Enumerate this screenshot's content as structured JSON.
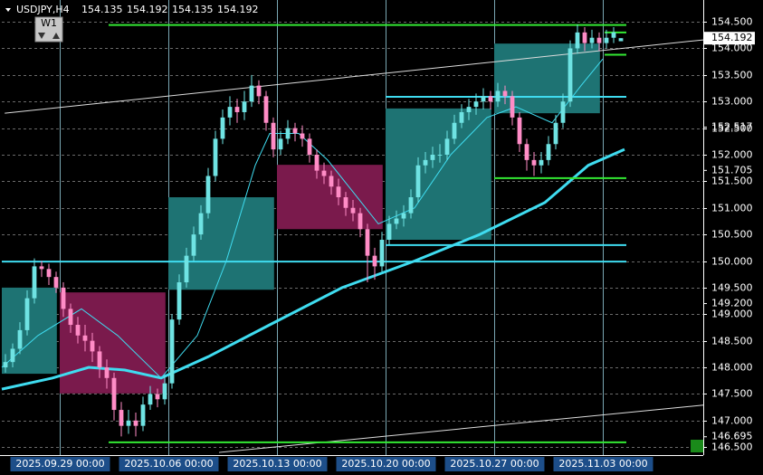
{
  "chart_data": {
    "type": "candlestick",
    "symbol": "USDJPY,H4",
    "header_prices": [
      154.135,
      154.192,
      154.135,
      154.192
    ],
    "timeframe_button": "W1",
    "current_price": 154.192,
    "bull_color": "#6fe3e3",
    "bear_color": "#ff8cc6",
    "grid": true,
    "xlim": [
      0,
      96.875
    ],
    "xticks": [
      {
        "value": 8,
        "label": "2025.09.29 00:00"
      },
      {
        "value": 23,
        "label": "2025.10.06 00:00"
      },
      {
        "value": 38,
        "label": "2025.10.13 00:00"
      },
      {
        "value": 53,
        "label": "2025.10.20 00:00"
      },
      {
        "value": 68,
        "label": "2025.10.27 00:00"
      },
      {
        "value": 83,
        "label": "2025.11.03 00:00"
      }
    ],
    "ylim": [
      146.35,
      154.91
    ],
    "yticks": [
      {
        "value": 154.5,
        "label": "154.500"
      },
      {
        "value": 154,
        "label": "154.000"
      },
      {
        "value": 153.5,
        "label": "153.500"
      },
      {
        "value": 153,
        "label": "153.000"
      },
      {
        "value": 152.5,
        "label": "152.500"
      },
      {
        "value": 152,
        "label": "152.000"
      },
      {
        "value": 151.5,
        "label": "151.500"
      },
      {
        "value": 151,
        "label": "151.000"
      },
      {
        "value": 150.5,
        "label": "150.500"
      },
      {
        "value": 150,
        "label": "150.000"
      },
      {
        "value": 149.5,
        "label": "149.500"
      },
      {
        "value": 149,
        "label": "149.000"
      },
      {
        "value": 148.5,
        "label": "148.500"
      },
      {
        "value": 148,
        "label": "148.000"
      },
      {
        "value": 147.5,
        "label": "147.500"
      },
      {
        "value": 147,
        "label": "147.000"
      },
      {
        "value": 146.5,
        "label": "146.500"
      }
    ],
    "price_labels": [
      {
        "value": 152.517,
        "label": "152.517"
      },
      {
        "value": 151.705,
        "label": "151.705"
      },
      {
        "value": 149.2,
        "label": "149.200"
      },
      {
        "value": 146.695,
        "label": "146.695"
      }
    ],
    "ohlc": [
      [
        148.0,
        148.25,
        147.9,
        148.1
      ],
      [
        148.1,
        148.45,
        148.0,
        148.35
      ],
      [
        148.35,
        148.85,
        148.25,
        148.7
      ],
      [
        148.7,
        149.45,
        148.6,
        149.3
      ],
      [
        149.3,
        150.05,
        149.2,
        149.9
      ],
      [
        149.9,
        150.0,
        149.7,
        149.85
      ],
      [
        149.85,
        149.95,
        149.55,
        149.7
      ],
      [
        149.7,
        149.8,
        149.4,
        149.5
      ],
      [
        149.5,
        149.6,
        148.95,
        149.1
      ],
      [
        149.1,
        149.2,
        148.65,
        148.8
      ],
      [
        148.8,
        148.95,
        148.45,
        148.6
      ],
      [
        148.6,
        148.8,
        148.3,
        148.5
      ],
      [
        148.5,
        148.65,
        148.1,
        148.3
      ],
      [
        148.3,
        148.4,
        147.8,
        148.0
      ],
      [
        148.0,
        148.15,
        147.6,
        147.8
      ],
      [
        147.8,
        147.9,
        147.0,
        147.2
      ],
      [
        147.2,
        147.35,
        146.7,
        146.9
      ],
      [
        146.9,
        147.2,
        146.75,
        147.0
      ],
      [
        147.0,
        147.15,
        146.7,
        146.9
      ],
      [
        146.9,
        147.45,
        146.8,
        147.3
      ],
      [
        147.3,
        147.65,
        147.2,
        147.5
      ],
      [
        147.5,
        147.6,
        147.25,
        147.4
      ],
      [
        147.4,
        147.85,
        147.3,
        147.7
      ],
      [
        147.7,
        149.0,
        147.6,
        148.9
      ],
      [
        148.9,
        149.75,
        148.8,
        149.6
      ],
      [
        149.6,
        150.25,
        149.5,
        150.1
      ],
      [
        150.1,
        150.65,
        150.0,
        150.5
      ],
      [
        150.5,
        151.05,
        150.4,
        150.9
      ],
      [
        150.9,
        151.75,
        150.8,
        151.6
      ],
      [
        151.6,
        152.45,
        151.5,
        152.3
      ],
      [
        152.3,
        152.85,
        152.2,
        152.7
      ],
      [
        152.7,
        153.1,
        152.55,
        152.9
      ],
      [
        152.9,
        153.05,
        152.6,
        152.8
      ],
      [
        152.8,
        153.2,
        152.65,
        153.0
      ],
      [
        153.0,
        153.5,
        152.9,
        153.3
      ],
      [
        153.3,
        153.4,
        152.95,
        153.1
      ],
      [
        153.1,
        153.2,
        152.45,
        152.6
      ],
      [
        152.6,
        152.7,
        151.95,
        152.1
      ],
      [
        152.1,
        152.45,
        152.0,
        152.3
      ],
      [
        152.3,
        152.65,
        152.2,
        152.5
      ],
      [
        152.5,
        152.6,
        152.25,
        152.4
      ],
      [
        152.4,
        152.55,
        152.15,
        152.3
      ],
      [
        152.3,
        152.4,
        151.85,
        152.0
      ],
      [
        152.0,
        152.1,
        151.55,
        151.7
      ],
      [
        151.7,
        151.85,
        151.45,
        151.6
      ],
      [
        151.6,
        151.7,
        151.25,
        151.4
      ],
      [
        151.4,
        151.55,
        151.05,
        151.2
      ],
      [
        151.2,
        151.3,
        150.85,
        151.0
      ],
      [
        151.0,
        151.15,
        150.75,
        150.9
      ],
      [
        150.9,
        151.0,
        150.45,
        150.6
      ],
      [
        150.6,
        150.7,
        149.6,
        150.1
      ],
      [
        150.1,
        150.25,
        149.65,
        149.9
      ],
      [
        149.9,
        150.55,
        149.8,
        150.4
      ],
      [
        150.4,
        150.85,
        150.3,
        150.7
      ],
      [
        150.7,
        150.95,
        150.6,
        150.8
      ],
      [
        150.8,
        151.05,
        150.65,
        150.9
      ],
      [
        150.9,
        151.35,
        150.8,
        151.2
      ],
      [
        151.2,
        151.95,
        151.1,
        151.8
      ],
      [
        151.8,
        152.05,
        151.65,
        151.9
      ],
      [
        151.9,
        152.15,
        151.75,
        152.0
      ],
      [
        152.0,
        152.2,
        151.85,
        152.0
      ],
      [
        152.0,
        152.45,
        151.9,
        152.3
      ],
      [
        152.3,
        152.75,
        152.2,
        152.6
      ],
      [
        152.6,
        152.95,
        152.5,
        152.8
      ],
      [
        152.8,
        153.05,
        152.65,
        152.9
      ],
      [
        152.9,
        153.15,
        152.75,
        153.0
      ],
      [
        153.0,
        153.25,
        152.85,
        153.1
      ],
      [
        153.1,
        153.2,
        152.85,
        153.0
      ],
      [
        153.0,
        153.35,
        152.9,
        153.2
      ],
      [
        153.2,
        153.3,
        152.95,
        153.1
      ],
      [
        153.1,
        153.2,
        152.55,
        152.7
      ],
      [
        152.7,
        152.8,
        152.05,
        152.2
      ],
      [
        152.2,
        152.3,
        151.7,
        151.9
      ],
      [
        151.9,
        152.05,
        151.6,
        151.8
      ],
      [
        151.8,
        152.05,
        151.65,
        151.9
      ],
      [
        151.9,
        152.35,
        151.8,
        152.2
      ],
      [
        152.2,
        152.75,
        152.1,
        152.6
      ],
      [
        152.6,
        153.15,
        152.5,
        153.0
      ],
      [
        153.0,
        154.15,
        152.9,
        154.0
      ],
      [
        154.0,
        154.45,
        153.9,
        154.3
      ],
      [
        154.3,
        154.4,
        153.95,
        154.1
      ],
      [
        154.1,
        154.35,
        154.0,
        154.2
      ],
      [
        154.2,
        154.3,
        153.95,
        154.1
      ],
      [
        154.1,
        154.35,
        154.0,
        154.2
      ],
      [
        154.2,
        154.4,
        154.1,
        154.3
      ],
      [
        154.135,
        154.192,
        154.135,
        154.192
      ]
    ],
    "boxes": [
      {
        "x": [
          0,
          7.6
        ],
        "range": [
          147.88,
          149.5
        ],
        "color": "#1e7373"
      },
      {
        "x": [
          8,
          22.6
        ],
        "range": [
          147.51,
          149.41
        ],
        "color": "#7a1a4c"
      },
      {
        "x": [
          23,
          37.6
        ],
        "range": [
          149.46,
          151.2
        ],
        "color": "#1e7373"
      },
      {
        "x": [
          38,
          52.6
        ],
        "range": [
          150.6,
          151.81
        ],
        "color": "#7a1a4c"
      },
      {
        "x": [
          53,
          67.6
        ],
        "range": [
          150.4,
          152.87
        ],
        "color": "#1e7373"
      },
      {
        "x": [
          68,
          82.6
        ],
        "range": [
          152.78,
          154.09
        ],
        "color": "#1e7373"
      }
    ],
    "moving_averages": [
      {
        "x": [
          0,
          7,
          12,
          17,
          22,
          28.5,
          37,
          47,
          57,
          66,
          75,
          81,
          86
        ],
        "values": [
          147.59,
          147.8,
          148.0,
          147.95,
          147.8,
          148.2,
          148.8,
          149.5,
          150.0,
          150.5,
          151.1,
          151.8,
          152.1
        ],
        "color": "#3fdcf0",
        "width": 3
      },
      {
        "x": [
          0,
          5,
          11,
          16,
          22,
          27,
          31,
          35,
          37,
          41,
          45,
          48.5,
          52,
          57,
          62,
          67,
          71,
          76,
          80,
          83
        ],
        "values": [
          148.0,
          148.6,
          149.1,
          148.6,
          147.8,
          148.6,
          150.0,
          151.8,
          152.4,
          152.4,
          151.9,
          151.3,
          150.7,
          151.0,
          152.0,
          152.7,
          152.9,
          152.6,
          153.3,
          153.8
        ],
        "color": "#3fdcf0",
        "width": 1
      }
    ],
    "levels": [
      {
        "value": 154.44,
        "x": [
          14.75,
          86.25
        ],
        "color": "#33e833",
        "width": 2
      },
      {
        "value": 146.59,
        "x": [
          14.75,
          86.25
        ],
        "color": "#33e833",
        "width": 2
      },
      {
        "value": 151.56,
        "x": [
          68,
          86.25
        ],
        "color": "#33e833",
        "width": 2
      },
      {
        "value": 154.3,
        "x": [
          83.25,
          86.25
        ],
        "color": "#33e833",
        "width": 2
      },
      {
        "value": 153.88,
        "x": [
          83.25,
          86.25
        ],
        "color": "#33e833",
        "width": 2
      },
      {
        "value": 153.09,
        "x": [
          53,
          86.25
        ],
        "color": "#3fdcf0",
        "width": 2
      },
      {
        "value": 150.3,
        "x": [
          53,
          86.25
        ],
        "color": "#3fdcf0",
        "width": 2
      },
      {
        "value": 149.99,
        "x": [
          0,
          86.25
        ],
        "color": "#3fdcf0",
        "width": 2
      }
    ],
    "trendlines": [
      {
        "x": [
          0.4,
          96.875
        ],
        "values": [
          152.78,
          154.16
        ],
        "color": "#dddddd"
      },
      {
        "x": [
          30,
          96.875
        ],
        "values": [
          146.4,
          147.29
        ],
        "color": "#dddddd"
      }
    ]
  }
}
